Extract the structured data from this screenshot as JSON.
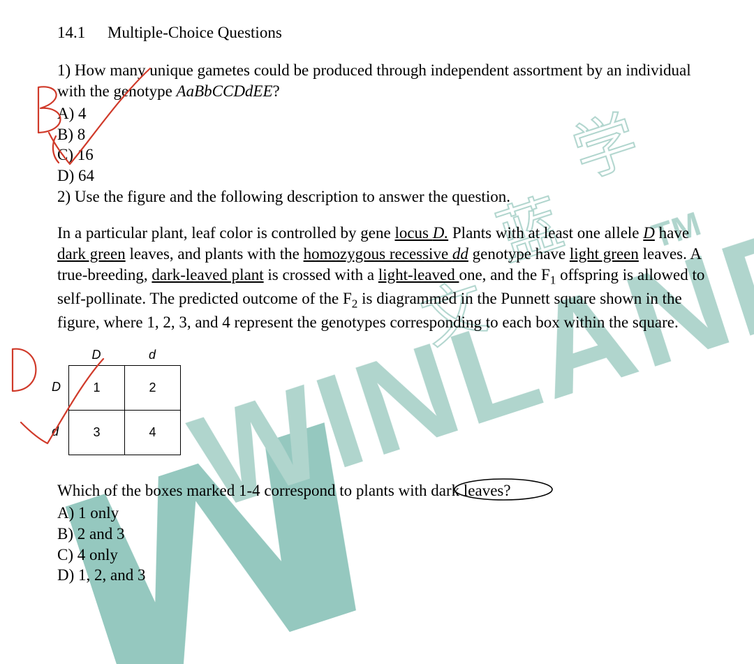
{
  "section": {
    "number": "14.1",
    "title": "Multiple-Choice Questions"
  },
  "q1": {
    "number": "1)",
    "text_a": "How many unique gametes could be produced through independent assortment by an individual with the genotype ",
    "genotype": "AaBbCCDdEE",
    "text_b": "?",
    "options": {
      "A": "A) 4",
      "B": "B) 8",
      "C": "C) 16",
      "D": "D) 64"
    }
  },
  "q2": {
    "number": "2)",
    "lead": "Use the figure and the following description to answer the question.",
    "para_parts": [
      {
        "t": "In a particular plant, leaf color is controlled by gene "
      },
      {
        "t": "locus ",
        "u": true
      },
      {
        "t": "D.",
        "u": true,
        "i": true
      },
      {
        "t": " Plants with at least one allele "
      },
      {
        "t": "D",
        "u": true,
        "i": true
      },
      {
        "t": " have "
      },
      {
        "t": "dark green",
        "u": true
      },
      {
        "t": " leaves, and plants with the "
      },
      {
        "t": "homozygous recessive ",
        "u": true
      },
      {
        "t": "dd",
        "u": true,
        "i": true
      },
      {
        "t": " genotype have "
      },
      {
        "t": "light green",
        "u": true
      },
      {
        "t": " leaves. A true-breeding, "
      },
      {
        "t": "dark-leaved plant",
        "u": true
      },
      {
        "t": " is crossed with a "
      },
      {
        "t": "light-leaved ",
        "u": true
      },
      {
        "t": "one, and the F"
      },
      {
        "t": "1",
        "sub": true
      },
      {
        "t": " offspring is allowed to self-pollinate. The predicted outcome of the F"
      },
      {
        "t": "2",
        "sub": true
      },
      {
        "t": " is diagrammed in the Punnett square shown in the figure, where 1, 2, 3, and 4 represent the genotypes corresponding to each box within the square."
      }
    ],
    "punnett": {
      "top": [
        "D",
        "d"
      ],
      "left": [
        "D",
        "d"
      ],
      "cells": [
        [
          "1",
          "2"
        ],
        [
          "3",
          "4"
        ]
      ]
    },
    "followup_a": "Which of the boxes marked 1-4 correspond to plants with ",
    "followup_circled": "dark leaves?",
    "options": {
      "A": "A) 1 only",
      "B": "B) 2 and 3",
      "C": "C) 4 only",
      "D": "D) 1, 2, and 3"
    }
  },
  "annotations": {
    "q1_answer": "B",
    "q2_answer": "D",
    "pen_color": "#d03a2a",
    "pen_width": 2.2
  },
  "watermark": {
    "text_main": "WINLAND",
    "tm": "TM",
    "cn1": "文",
    "cn2": "蓝",
    "cn3": "学",
    "color_teal": "#74b7ab",
    "color_teal_light": "#a7d0c8",
    "opacity": 0.9
  }
}
